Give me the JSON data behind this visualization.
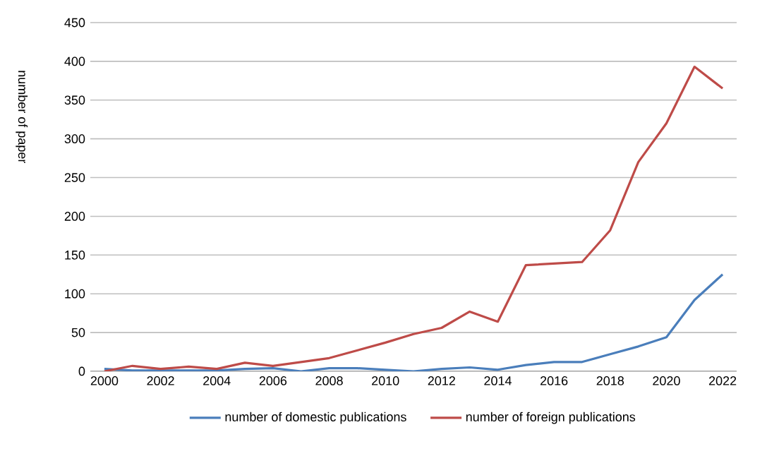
{
  "chart_data": {
    "type": "line",
    "ylabel": "number of paper",
    "x": [
      2000,
      2001,
      2002,
      2003,
      2004,
      2005,
      2006,
      2007,
      2008,
      2009,
      2010,
      2011,
      2012,
      2013,
      2014,
      2015,
      2016,
      2017,
      2018,
      2019,
      2020,
      2021,
      2022
    ],
    "series": [
      {
        "name": "number of domestic publications",
        "color": "#4a7ebb",
        "values": [
          3,
          1,
          1,
          1,
          1,
          3,
          4,
          0,
          4,
          4,
          2,
          0,
          3,
          5,
          2,
          8,
          12,
          12,
          22,
          32,
          44,
          92,
          125
        ]
      },
      {
        "name": "number of foreign publications",
        "color": "#be4b48",
        "values": [
          0,
          7,
          3,
          6,
          3,
          11,
          7,
          12,
          17,
          27,
          37,
          48,
          56,
          77,
          64,
          137,
          139,
          141,
          182,
          270,
          320,
          393,
          365
        ]
      }
    ],
    "xlim": [
      1999.5,
      2022.5
    ],
    "xticks": [
      2000,
      2002,
      2004,
      2006,
      2008,
      2010,
      2012,
      2014,
      2016,
      2018,
      2020,
      2022
    ],
    "ylim": [
      0,
      450
    ],
    "yticks": [
      0,
      50,
      100,
      150,
      200,
      250,
      300,
      350,
      400,
      450
    ],
    "grid": "y",
    "legend": "bottom",
    "marker": "none",
    "line_style": "solid"
  }
}
